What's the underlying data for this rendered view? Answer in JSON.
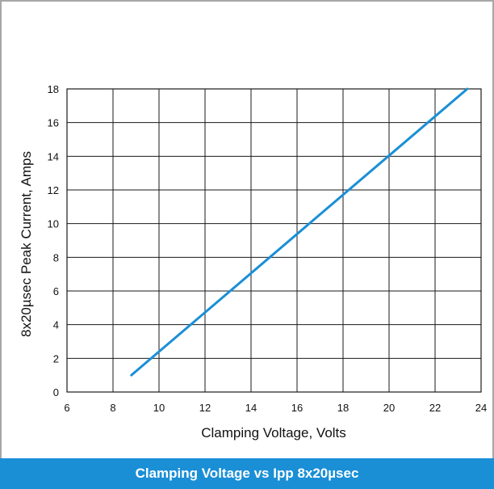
{
  "chart_data": {
    "type": "line",
    "title": "Clamping Voltage vs Ipp 8x20µsec",
    "xlabel": "Clamping Voltage, Volts",
    "ylabel": "8x20µsec Peak Current, Amps",
    "xlim": [
      6,
      24
    ],
    "ylim": [
      0,
      18
    ],
    "xticks": [
      "6",
      "8",
      "10",
      "12",
      "14",
      "16",
      "18",
      "20",
      "22",
      "24"
    ],
    "yticks": [
      "0",
      "2",
      "4",
      "6",
      "8",
      "10",
      "12",
      "14",
      "16",
      "18"
    ],
    "grid": true,
    "series": [
      {
        "color": "#1a8fd6",
        "x": [
          8.8,
          23.4
        ],
        "y": [
          1.0,
          18.0
        ]
      }
    ]
  }
}
